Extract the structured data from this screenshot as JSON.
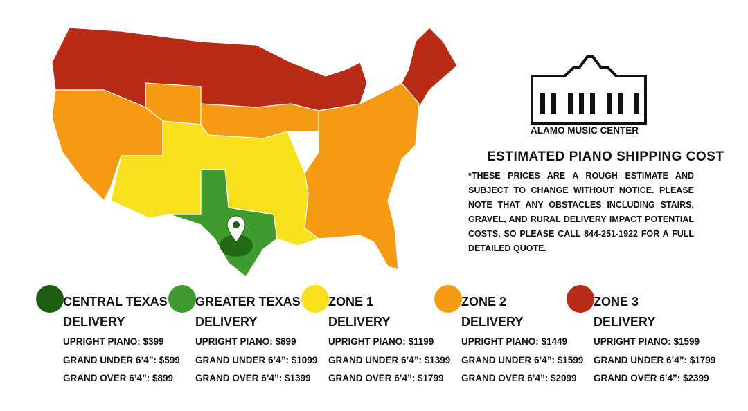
{
  "logo": {
    "text": "ALAMO MUSIC CENTER"
  },
  "info": {
    "title": "ESTIMATED PIANO SHIPPING COST",
    "note": "*THESE PRICES ARE A ROUGH ESTIMATE AND SUBJECT TO CHANGE WITHOUT NOTICE. PLEASE NOTE THAT ANY OBSTACLES INCLUDING STAIRS, GRAVEL, AND RURAL DELIVERY IMPACT POTENTIAL COSTS, SO PLEASE CALL 844-251-1922 FOR A FULL DETAILED QUOTE."
  },
  "zones": [
    {
      "color": "#1d5e12",
      "name_lines": [
        "CENTRAL TEXAS",
        "DELIVERY"
      ],
      "prices": [
        "UPRIGHT PIANO: $399",
        "GRAND UNDER 6’4”: $599",
        "GRAND OVER 6’4”: $899"
      ]
    },
    {
      "color": "#3f9b2f",
      "name_lines": [
        "GREATER TEXAS",
        "DELIVERY"
      ],
      "prices": [
        "UPRIGHT PIANO: $899",
        "GRAND UNDER 6’4”: $1099",
        "GRAND OVER 6’4”: $1399"
      ]
    },
    {
      "color": "#f7e11c",
      "name_lines": [
        "ZONE 1",
        "DELIVERY"
      ],
      "prices": [
        "UPRIGHT PIANO: $1199",
        "GRAND UNDER 6’4”: $1399",
        "GRAND OVER 6’4”: $1799"
      ]
    },
    {
      "color": "#f59a12",
      "name_lines": [
        "ZONE 2",
        "DELIVERY"
      ],
      "prices": [
        "UPRIGHT PIANO: $1449",
        "GRAND UNDER 6’4”: $1599",
        "GRAND OVER 6’4”: $2099"
      ]
    },
    {
      "color": "#b92b14",
      "name_lines": [
        "ZONE 3",
        "DELIVERY"
      ],
      "prices": [
        "UPRIGHT PIANO: $1599",
        "GRAND UNDER 6’4”: $1799",
        "GRAND OVER 6’4”: $2399"
      ]
    }
  ]
}
